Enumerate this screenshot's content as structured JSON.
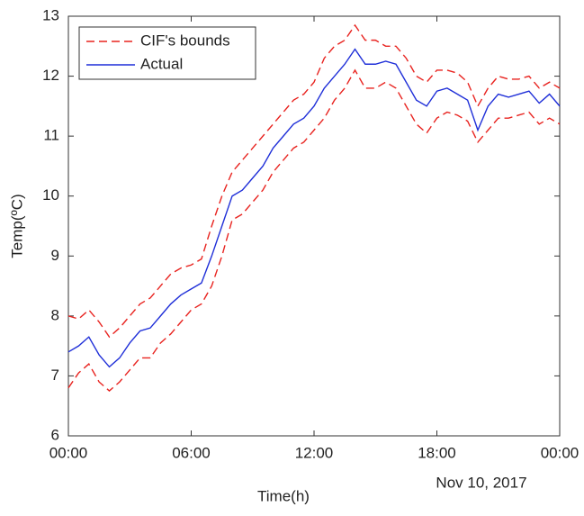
{
  "chart_data": {
    "type": "line",
    "x": [
      0,
      0.5,
      1,
      1.5,
      2,
      2.5,
      3,
      3.5,
      4,
      4.5,
      5,
      5.5,
      6,
      6.5,
      7,
      7.5,
      8,
      8.5,
      9,
      9.5,
      10,
      10.5,
      11,
      11.5,
      12,
      12.5,
      13,
      13.5,
      14,
      14.5,
      15,
      15.5,
      16,
      16.5,
      17,
      17.5,
      18,
      18.5,
      19,
      19.5,
      20,
      20.5,
      21,
      21.5,
      22,
      22.5,
      23,
      23.5,
      24
    ],
    "series": [
      {
        "name": "CIF's bounds",
        "color": "#e8231f",
        "dashed": true,
        "values": [
          8.0,
          7.95,
          8.1,
          7.9,
          7.65,
          7.8,
          8.0,
          8.2,
          8.3,
          8.5,
          8.7,
          8.8,
          8.85,
          8.95,
          9.5,
          10.0,
          10.4,
          10.6,
          10.8,
          11.0,
          11.2,
          11.4,
          11.6,
          11.7,
          11.9,
          12.3,
          12.5,
          12.6,
          12.85,
          12.6,
          12.6,
          12.5,
          12.5,
          12.3,
          12.0,
          11.9,
          12.1,
          12.1,
          12.05,
          11.9,
          11.5,
          11.8,
          12.0,
          11.95,
          11.95,
          12.0,
          11.8,
          11.9,
          11.8
        ],
        "lower": [
          6.8,
          7.05,
          7.2,
          6.9,
          6.75,
          6.9,
          7.1,
          7.3,
          7.3,
          7.55,
          7.7,
          7.9,
          8.1,
          8.2,
          8.5,
          9.0,
          9.6,
          9.7,
          9.9,
          10.1,
          10.4,
          10.6,
          10.8,
          10.9,
          11.1,
          11.3,
          11.6,
          11.8,
          12.1,
          11.8,
          11.8,
          11.9,
          11.8,
          11.5,
          11.2,
          11.05,
          11.3,
          11.4,
          11.35,
          11.25,
          10.9,
          11.1,
          11.3,
          11.3,
          11.35,
          11.4,
          11.2,
          11.3,
          11.2
        ]
      },
      {
        "name": "Actual",
        "color": "#1f2fd8",
        "dashed": false,
        "values": [
          7.4,
          7.5,
          7.65,
          7.35,
          7.15,
          7.3,
          7.55,
          7.75,
          7.8,
          8.0,
          8.2,
          8.35,
          8.45,
          8.55,
          9.0,
          9.5,
          10.0,
          10.1,
          10.3,
          10.5,
          10.8,
          11.0,
          11.2,
          11.3,
          11.5,
          11.8,
          12.0,
          12.2,
          12.45,
          12.2,
          12.2,
          12.25,
          12.2,
          11.9,
          11.6,
          11.5,
          11.75,
          11.8,
          11.7,
          11.6,
          11.1,
          11.5,
          11.7,
          11.65,
          11.7,
          11.75,
          11.55,
          11.7,
          11.5
        ]
      }
    ],
    "xlim": [
      0,
      24
    ],
    "xticks": [
      {
        "value": 0,
        "label": "00:00"
      },
      {
        "value": 6,
        "label": "06:00"
      },
      {
        "value": 12,
        "label": "12:00"
      },
      {
        "value": 18,
        "label": "18:00"
      },
      {
        "value": 24,
        "label": "00:00"
      }
    ],
    "ylim": [
      6,
      13
    ],
    "yticks": [
      6,
      7,
      8,
      9,
      10,
      11,
      12,
      13
    ],
    "xlabel": "Time(h)",
    "ylabel": "Temp(ºC)",
    "annotation": "Nov 10, 2017",
    "legend": "upper left",
    "grid": false
  }
}
